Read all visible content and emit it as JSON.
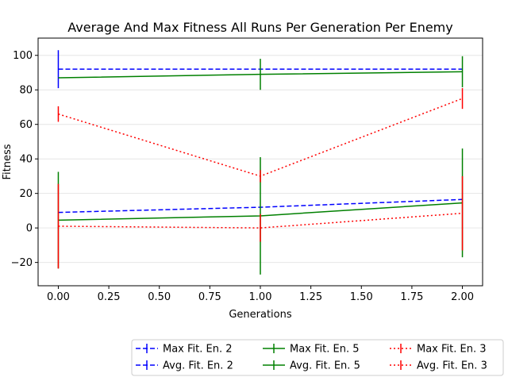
{
  "chart_data": {
    "type": "line",
    "title": "Average And Max Fitness All Runs Per Generation Per Enemy",
    "xlabel": "Generations",
    "ylabel": "Fitness",
    "x": [
      0,
      1,
      2
    ],
    "xlim": [
      -0.1,
      2.1
    ],
    "ylim": [
      -33.5,
      110
    ],
    "xticks": [
      "0.00",
      "0.25",
      "0.50",
      "0.75",
      "1.00",
      "1.25",
      "1.50",
      "1.75",
      "2.00"
    ],
    "yticks": [
      "−20",
      "0",
      "20",
      "40",
      "60",
      "80",
      "100"
    ],
    "grid": "horizontal",
    "legend_position": "bottom-right, outside",
    "series": [
      {
        "name": "Max Fit. En. 2",
        "color": "#0000ff",
        "style": "dashed",
        "values": [
          92,
          92,
          92
        ],
        "err": [
          11,
          0,
          0
        ]
      },
      {
        "name": "Avg. Fit. En. 2",
        "color": "#0000ff",
        "style": "dashed",
        "values": [
          9,
          12,
          16.5
        ],
        "err": [
          0,
          0,
          0
        ]
      },
      {
        "name": "Max Fit. En. 5",
        "color": "#008000",
        "style": "solid",
        "values": [
          87,
          89,
          90.5
        ],
        "err": [
          0,
          9,
          9
        ]
      },
      {
        "name": "Avg. Fit. En. 5",
        "color": "#008000",
        "style": "solid",
        "values": [
          4.5,
          7,
          14.5
        ],
        "err": [
          28,
          34,
          31.5
        ]
      },
      {
        "name": "Max Fit. En. 3",
        "color": "#ff0000",
        "style": "dotted",
        "values": [
          66,
          30,
          75
        ],
        "err": [
          4.5,
          3.5,
          6
        ]
      },
      {
        "name": "Avg. Fit. En. 3",
        "color": "#ff0000",
        "style": "dotted",
        "values": [
          1,
          0,
          8.5
        ],
        "err": [
          24.5,
          8,
          21.5
        ]
      }
    ]
  }
}
